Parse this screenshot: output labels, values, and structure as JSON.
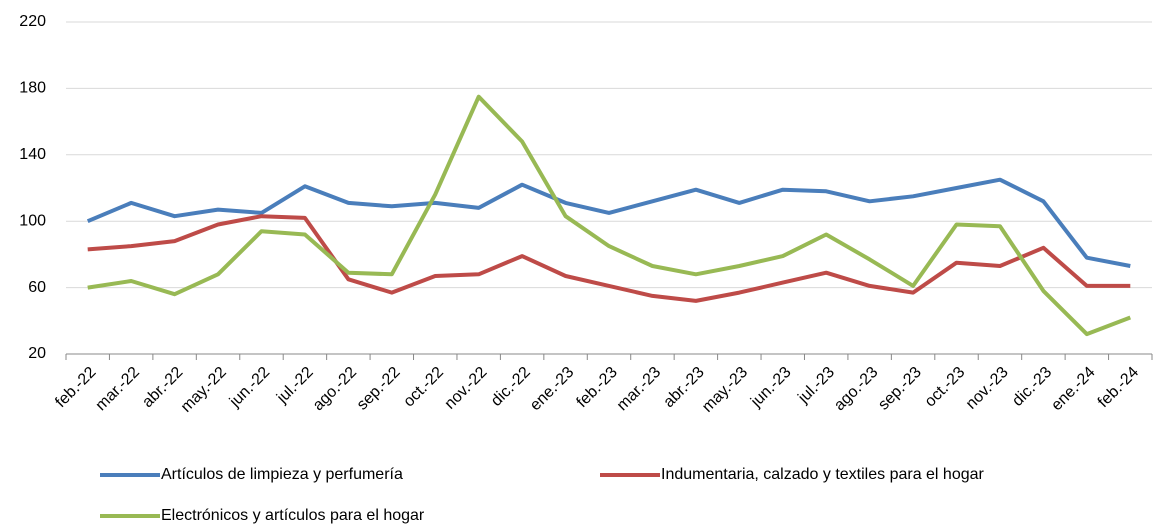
{
  "chart_data": {
    "type": "line",
    "categories": [
      "feb.-22",
      "mar.-22",
      "abr.-22",
      "may.-22",
      "jun.-22",
      "jul.-22",
      "ago.-22",
      "sep.-22",
      "oct.-22",
      "nov.-22",
      "dic.-22",
      "ene.-23",
      "feb.-23",
      "mar.-23",
      "abr.-23",
      "may.-23",
      "jun.-23",
      "jul.-23",
      "ago.-23",
      "sep.-23",
      "oct.-23",
      "nov.-23",
      "dic.-23",
      "ene.-24",
      "feb.-24"
    ],
    "series": [
      {
        "name": "Artículos de limpieza y perfumería",
        "color": "#4a7ebb",
        "values": [
          100,
          111,
          103,
          107,
          105,
          121,
          111,
          109,
          111,
          108,
          122,
          111,
          105,
          112,
          119,
          111,
          119,
          118,
          112,
          115,
          120,
          125,
          112,
          78,
          73
        ]
      },
      {
        "name": "Indumentaria, calzado y textiles para el hogar",
        "color": "#be4b48",
        "values": [
          83,
          85,
          88,
          98,
          103,
          102,
          65,
          57,
          67,
          68,
          79,
          67,
          61,
          55,
          52,
          57,
          63,
          69,
          61,
          57,
          75,
          73,
          84,
          61,
          61
        ]
      },
      {
        "name": "Electrónicos y artículos para el hogar",
        "color": "#98b954",
        "values": [
          60,
          64,
          56,
          68,
          94,
          92,
          69,
          68,
          116,
          175,
          148,
          103,
          85,
          73,
          68,
          73,
          79,
          92,
          77,
          61,
          98,
          97,
          58,
          32,
          42
        ]
      }
    ],
    "ylim": [
      20,
      220
    ],
    "yticks": [
      20,
      60,
      100,
      140,
      180,
      220
    ],
    "grid": true
  }
}
